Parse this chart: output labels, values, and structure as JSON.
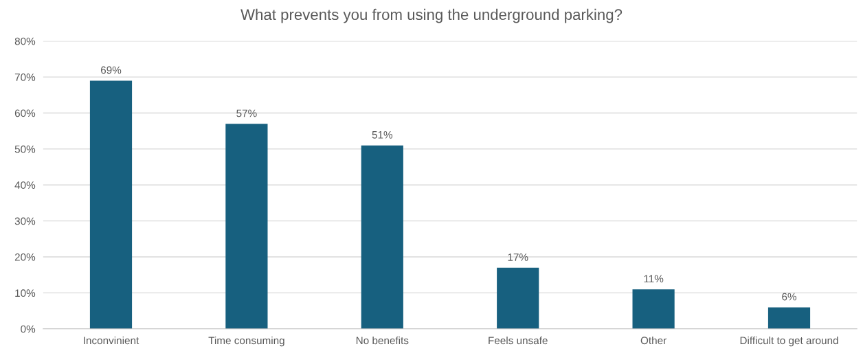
{
  "chart_data": {
    "type": "bar",
    "title": "What prevents you from using the underground parking?",
    "categories": [
      "Inconvinient",
      "Time consuming",
      "No benefits",
      "Feels unsafe",
      "Other",
      "Difficult to get around"
    ],
    "values": [
      69,
      57,
      51,
      17,
      11,
      6
    ],
    "value_labels": [
      "69%",
      "57%",
      "51%",
      "17%",
      "11%",
      "6%"
    ],
    "color": "#17607f",
    "ylim": [
      0,
      80
    ],
    "yticks": [
      {
        "value": 0,
        "label": "0%"
      },
      {
        "value": 10,
        "label": "10%"
      },
      {
        "value": 20,
        "label": "20%"
      },
      {
        "value": 30,
        "label": "30%"
      },
      {
        "value": 40,
        "label": "40%"
      },
      {
        "value": 50,
        "label": "50%"
      },
      {
        "value": 60,
        "label": "60%"
      },
      {
        "value": 70,
        "label": "70%"
      },
      {
        "value": 80,
        "label": "80%"
      }
    ],
    "grid": "y",
    "legend": false
  }
}
